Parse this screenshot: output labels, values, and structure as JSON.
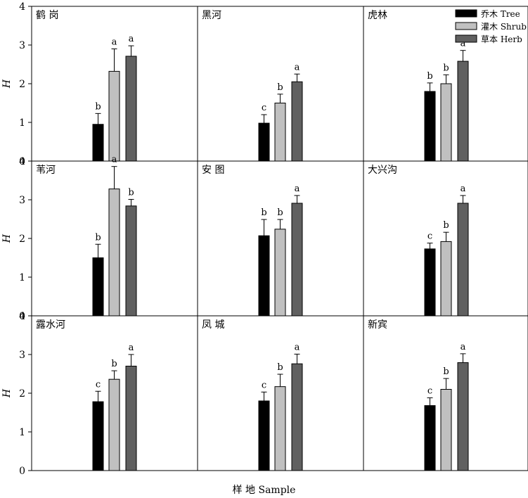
{
  "chart_data": {
    "type": "bar",
    "xlabel": "样 地 Sample",
    "ylabel": "H",
    "ylim": [
      0,
      4
    ],
    "yticks": [
      "0",
      "1",
      "2",
      "3",
      "4"
    ],
    "legend_position": "top-right",
    "series": [
      {
        "name": "乔木 Tree",
        "color": "#000000"
      },
      {
        "name": "灌木 Shrub",
        "color": "#c0c0c0"
      },
      {
        "name": "草本 Herb",
        "color": "#606060"
      }
    ],
    "panels": [
      {
        "site": "鹤 岗",
        "values": [
          0.95,
          2.32,
          2.71
        ],
        "errors": [
          0.28,
          0.58,
          0.27
        ],
        "letters": [
          "b",
          "a",
          "a"
        ]
      },
      {
        "site": "黑河",
        "values": [
          0.98,
          1.5,
          2.05
        ],
        "errors": [
          0.22,
          0.23,
          0.2
        ],
        "letters": [
          "c",
          "b",
          "a"
        ]
      },
      {
        "site": "虎林",
        "values": [
          1.8,
          2.0,
          2.58
        ],
        "errors": [
          0.22,
          0.23,
          0.28
        ],
        "letters": [
          "b",
          "b",
          "a"
        ]
      },
      {
        "site": "苇河",
        "values": [
          1.5,
          3.28,
          2.84
        ],
        "errors": [
          0.35,
          0.58,
          0.17
        ],
        "letters": [
          "b",
          "a",
          "b"
        ]
      },
      {
        "site": "安 图",
        "values": [
          2.07,
          2.24,
          2.91
        ],
        "errors": [
          0.42,
          0.25,
          0.2
        ],
        "letters": [
          "b",
          "b",
          "a"
        ]
      },
      {
        "site": "大兴沟",
        "values": [
          1.73,
          1.92,
          2.91
        ],
        "errors": [
          0.15,
          0.24,
          0.2
        ],
        "letters": [
          "c",
          "b",
          "a"
        ]
      },
      {
        "site": "露水河",
        "values": [
          1.78,
          2.36,
          2.7
        ],
        "errors": [
          0.27,
          0.22,
          0.3
        ],
        "letters": [
          "c",
          "b",
          "a"
        ]
      },
      {
        "site": "凤 城",
        "values": [
          1.8,
          2.17,
          2.76
        ],
        "errors": [
          0.23,
          0.32,
          0.25
        ],
        "letters": [
          "c",
          "b",
          "a"
        ]
      },
      {
        "site": "新宾",
        "values": [
          1.68,
          2.1,
          2.79
        ],
        "errors": [
          0.2,
          0.28,
          0.23
        ],
        "letters": [
          "c",
          "b",
          "a"
        ]
      }
    ]
  }
}
